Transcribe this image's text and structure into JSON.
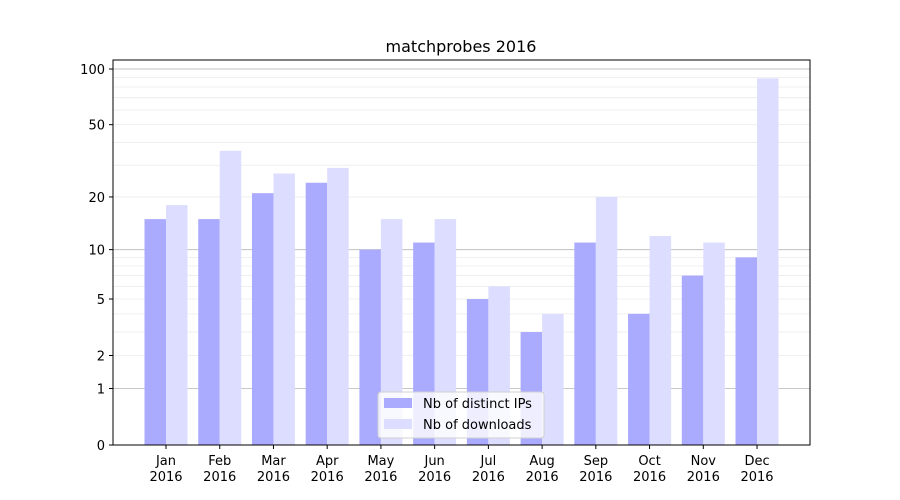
{
  "chart_data": {
    "type": "bar",
    "title": "matchprobes 2016",
    "xlabel": "",
    "ylabel": "",
    "yscale": "log10(y+1)",
    "ylim": [
      0,
      110
    ],
    "yticks": [
      0,
      1,
      2,
      5,
      10,
      20,
      50,
      100
    ],
    "grid": true,
    "legend_position": "lower-center",
    "categories": [
      "Jan\n2016",
      "Feb\n2016",
      "Mar\n2016",
      "Apr\n2016",
      "May\n2016",
      "Jun\n2016",
      "Jul\n2016",
      "Aug\n2016",
      "Sep\n2016",
      "Oct\n2016",
      "Nov\n2016",
      "Dec\n2016"
    ],
    "series": [
      {
        "name": "Nb of distinct IPs",
        "color": "#aaaaff",
        "values": [
          15,
          15,
          21,
          24,
          10,
          11,
          5,
          3,
          11,
          4,
          7,
          9
        ]
      },
      {
        "name": "Nb of downloads",
        "color": "#ddddff",
        "values": [
          18,
          36,
          27,
          29,
          15,
          15,
          6,
          4,
          20,
          12,
          11,
          89
        ]
      }
    ]
  }
}
